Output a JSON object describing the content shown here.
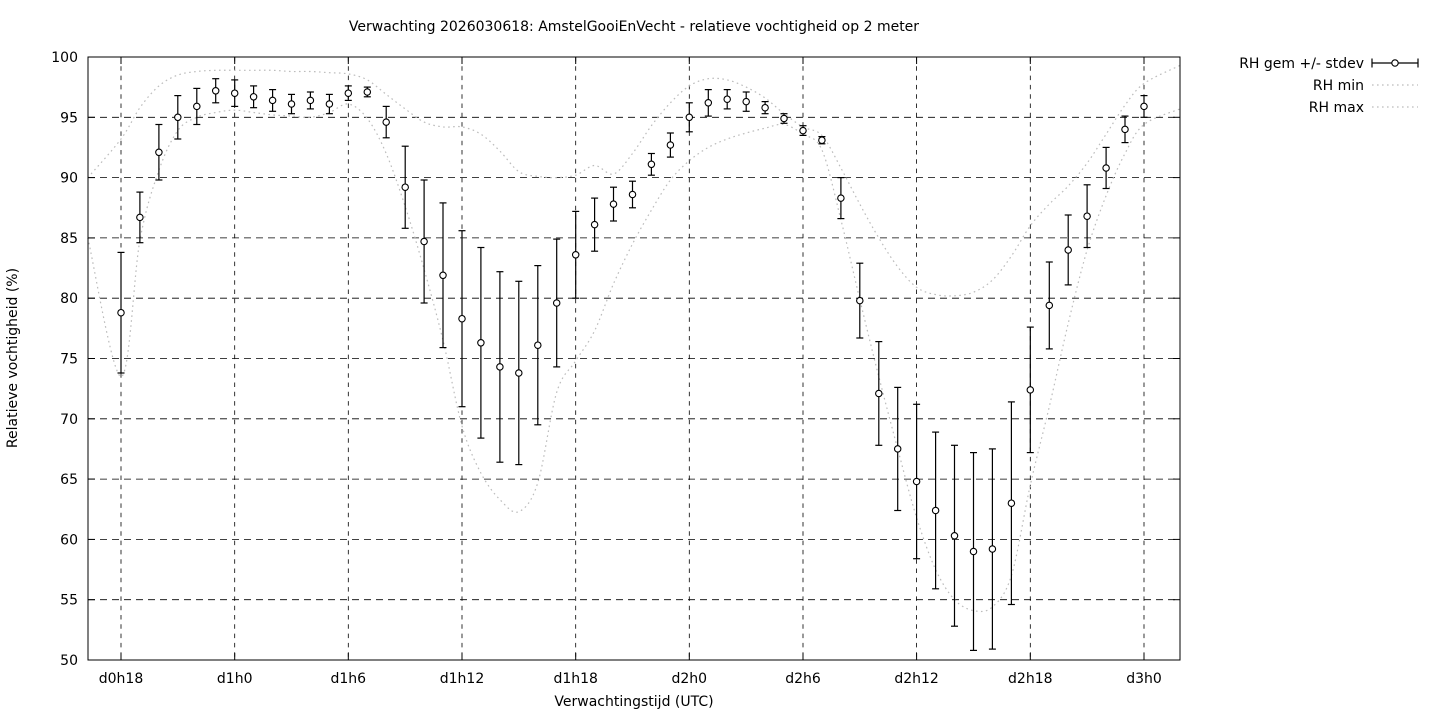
{
  "chart_data": {
    "type": "line",
    "subtype": "errorbars-with-minmax-envelope",
    "title": "Verwachting 2026030618: AmstelGooiEnVecht - relatieve vochtigheid op 2 meter",
    "xlabel": "Verwachtingstijd (UTC)",
    "ylabel": "Relatieve vochtigheid (%)",
    "ylim": [
      50,
      100
    ],
    "yticks": [
      50,
      55,
      60,
      65,
      70,
      75,
      80,
      85,
      90,
      95,
      100
    ],
    "xticks": [
      {
        "t": 0,
        "label": "d0h18"
      },
      {
        "t": 6,
        "label": "d1h0"
      },
      {
        "t": 12,
        "label": "d1h6"
      },
      {
        "t": 18,
        "label": "d1h12"
      },
      {
        "t": 24,
        "label": "d1h18"
      },
      {
        "t": 30,
        "label": "d2h0"
      },
      {
        "t": 36,
        "label": "d2h6"
      },
      {
        "t": 42,
        "label": "d2h12"
      },
      {
        "t": 48,
        "label": "d2h18"
      },
      {
        "t": 54,
        "label": "d3h0"
      }
    ],
    "grid": true,
    "legend_position": "outside-top-right",
    "colors": {
      "data": "#000000",
      "envelope": "#bcbcbc",
      "background": "#ffffff"
    },
    "series": [
      {
        "name": "RH gem +/- stdev",
        "type": "errorbar",
        "marker": "open-circle",
        "color": "#000000",
        "t_start_hours": 0,
        "t_step_hours": 1,
        "mean": [
          78.8,
          86.7,
          92.1,
          95.0,
          95.9,
          97.2,
          97.0,
          96.7,
          96.4,
          96.1,
          96.4,
          96.1,
          97.0,
          97.1,
          94.6,
          89.2,
          84.7,
          81.9,
          78.3,
          76.3,
          74.3,
          73.8,
          76.1,
          79.6,
          83.6,
          86.1,
          87.8,
          88.6,
          91.1,
          92.7,
          95.0,
          96.2,
          96.5,
          96.3,
          95.8,
          94.9,
          93.9,
          93.1,
          88.3,
          79.8,
          72.1,
          67.5,
          64.8,
          62.4,
          60.3,
          59.0,
          59.2,
          63.0,
          72.4,
          79.4,
          84.0,
          86.8,
          90.8,
          94.0,
          95.9
        ],
        "stdev": [
          5.0,
          2.1,
          2.3,
          1.8,
          1.5,
          1.0,
          1.1,
          0.9,
          0.9,
          0.8,
          0.7,
          0.8,
          0.6,
          0.4,
          1.3,
          3.4,
          5.1,
          6.0,
          7.3,
          7.9,
          7.9,
          7.6,
          6.6,
          5.3,
          3.6,
          2.2,
          1.4,
          1.1,
          0.9,
          1.0,
          1.2,
          1.1,
          0.8,
          0.8,
          0.5,
          0.4,
          0.4,
          0.3,
          1.7,
          3.1,
          4.3,
          5.1,
          6.4,
          6.5,
          7.5,
          8.2,
          8.3,
          8.4,
          5.2,
          3.6,
          2.9,
          2.6,
          1.7,
          1.1,
          0.9
        ]
      },
      {
        "name": "RH min",
        "type": "dotted-line",
        "color": "#bcbcbc",
        "points": [
          [
            -1.75,
            85.0
          ],
          [
            0,
            73.5
          ],
          [
            1,
            84.8
          ],
          [
            2,
            90.6
          ],
          [
            3,
            93.9
          ],
          [
            4,
            95.0
          ],
          [
            5,
            95.4
          ],
          [
            6,
            95.6
          ],
          [
            7,
            95.4
          ],
          [
            8,
            95.2
          ],
          [
            9,
            95.1
          ],
          [
            10,
            95.0
          ],
          [
            11,
            95.4
          ],
          [
            12,
            96.1
          ],
          [
            13,
            94.9
          ],
          [
            14,
            92.0
          ],
          [
            15,
            87.6
          ],
          [
            16,
            82.4
          ],
          [
            17,
            76.5
          ],
          [
            18,
            69.4
          ],
          [
            19,
            65.5
          ],
          [
            20,
            63.3
          ],
          [
            21,
            62.3
          ],
          [
            22,
            64.7
          ],
          [
            23,
            72.2
          ],
          [
            24,
            74.8
          ],
          [
            25,
            77.3
          ],
          [
            26,
            81.2
          ],
          [
            27,
            84.5
          ],
          [
            28,
            87.3
          ],
          [
            29,
            89.8
          ],
          [
            30,
            91.4
          ],
          [
            31,
            92.5
          ],
          [
            32,
            93.2
          ],
          [
            33,
            93.7
          ],
          [
            34,
            94.1
          ],
          [
            35,
            94.4
          ],
          [
            36,
            93.6
          ],
          [
            37,
            92.3
          ],
          [
            38,
            86.5
          ],
          [
            39,
            79.9
          ],
          [
            40,
            73.5
          ],
          [
            41,
            67.5
          ],
          [
            42,
            61.8
          ],
          [
            43,
            57.5
          ],
          [
            44,
            55.0
          ],
          [
            45,
            54.1
          ],
          [
            46,
            54.4
          ],
          [
            47,
            57.0
          ],
          [
            48,
            64.5
          ],
          [
            49,
            71.0
          ],
          [
            50,
            77.9
          ],
          [
            51,
            84.0
          ],
          [
            52,
            88.5
          ],
          [
            53,
            92.0
          ],
          [
            54,
            94.4
          ],
          [
            55.9,
            95.7
          ]
        ]
      },
      {
        "name": "RH max",
        "type": "dotted-line",
        "color": "#bcbcbc",
        "points": [
          [
            -1.75,
            90.0
          ],
          [
            0,
            93.2
          ],
          [
            1,
            95.8
          ],
          [
            2,
            97.6
          ],
          [
            3,
            98.5
          ],
          [
            4,
            98.8
          ],
          [
            5,
            98.9
          ],
          [
            6,
            98.9
          ],
          [
            7,
            98.9
          ],
          [
            8,
            98.9
          ],
          [
            9,
            98.8
          ],
          [
            10,
            98.8
          ],
          [
            11,
            98.7
          ],
          [
            12,
            98.6
          ],
          [
            13,
            98.1
          ],
          [
            14,
            96.9
          ],
          [
            15,
            95.7
          ],
          [
            16,
            94.6
          ],
          [
            17,
            94.2
          ],
          [
            18,
            94.2
          ],
          [
            19,
            93.6
          ],
          [
            20,
            92.2
          ],
          [
            21,
            90.5
          ],
          [
            22,
            90.1
          ],
          [
            23,
            90.0
          ],
          [
            24,
            90.2
          ],
          [
            25,
            91.0
          ],
          [
            26,
            90.3
          ],
          [
            27,
            92.0
          ],
          [
            28,
            94.3
          ],
          [
            29,
            96.2
          ],
          [
            30,
            97.6
          ],
          [
            31,
            98.2
          ],
          [
            32,
            98.1
          ],
          [
            33,
            97.5
          ],
          [
            34,
            96.6
          ],
          [
            35,
            95.3
          ],
          [
            36,
            94.2
          ],
          [
            37,
            93.5
          ],
          [
            38,
            90.8
          ],
          [
            39,
            87.8
          ],
          [
            40,
            85.0
          ],
          [
            41,
            82.6
          ],
          [
            42,
            80.9
          ],
          [
            43,
            80.3
          ],
          [
            44,
            80.2
          ],
          [
            45,
            80.5
          ],
          [
            46,
            81.5
          ],
          [
            47,
            83.5
          ],
          [
            48,
            86.0
          ],
          [
            49,
            87.8
          ],
          [
            50,
            89.3
          ],
          [
            51,
            91.2
          ],
          [
            52,
            93.6
          ],
          [
            53,
            96.0
          ],
          [
            54,
            97.8
          ],
          [
            55.9,
            99.3
          ]
        ]
      }
    ]
  },
  "legend": {
    "items": [
      {
        "label": "RH gem +/- stdev",
        "glyph": "errorbar-circle"
      },
      {
        "label": "RH min",
        "glyph": "dotted-line"
      },
      {
        "label": "RH max",
        "glyph": "dotted-line"
      }
    ]
  }
}
